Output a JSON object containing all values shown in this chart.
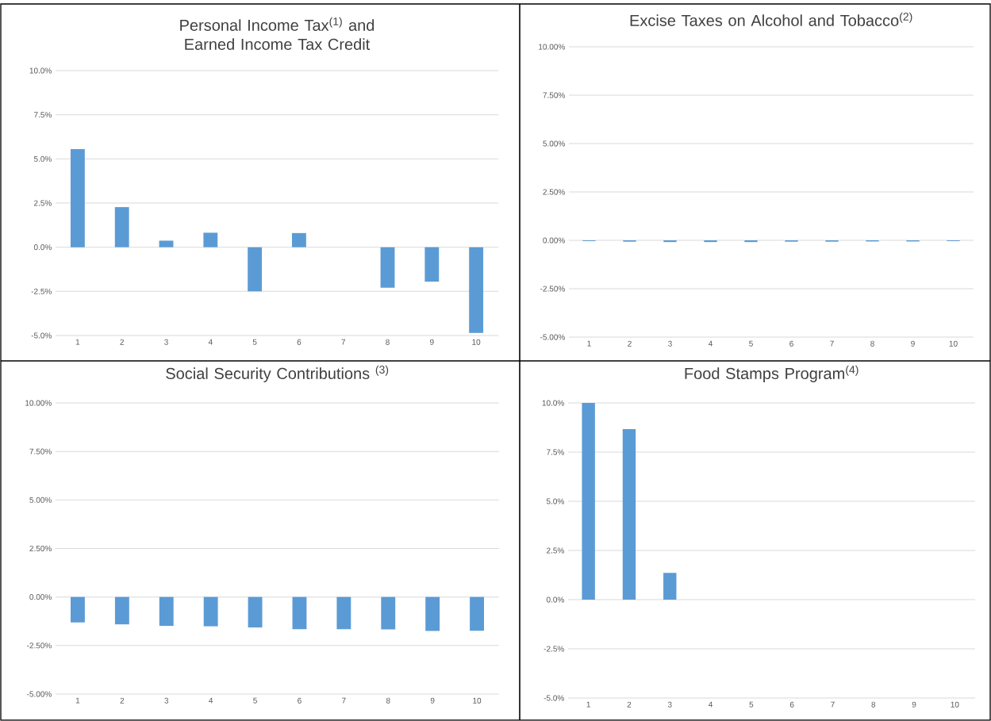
{
  "chart_data": [
    {
      "type": "bar",
      "title": "Personal Income Tax$^{(1)}$ and Earned Income Tax Credit",
      "categories": [
        "1",
        "2",
        "3",
        "4",
        "5",
        "6",
        "7",
        "8",
        "9",
        "10"
      ],
      "values": [
        5.55,
        2.27,
        0.37,
        0.82,
        -2.5,
        0.8,
        0,
        -2.3,
        -1.95,
        -4.86
      ],
      "color": "#5b9bd5",
      "ylim": [
        -5,
        10
      ],
      "yticks": [
        {
          "value": -5,
          "label": "-5.0%"
        },
        {
          "value": -2.5,
          "label": "-2.5%"
        },
        {
          "value": 0,
          "label": "0.0%"
        },
        {
          "value": 2.5,
          "label": "2.5%"
        },
        {
          "value": 5,
          "label": "5.0%"
        },
        {
          "value": 7.5,
          "label": "7.5%"
        },
        {
          "value": 10,
          "label": "10.0%"
        }
      ],
      "grid": "y"
    },
    {
      "type": "bar",
      "title": "Excise Taxes on Alcohol and Tobacco$^{(2)}$",
      "categories": [
        "1",
        "2",
        "3",
        "4",
        "5",
        "6",
        "7",
        "8",
        "9",
        "10"
      ],
      "values": [
        -0.04,
        -0.07,
        -0.09,
        -0.09,
        -0.09,
        -0.07,
        -0.07,
        -0.06,
        -0.06,
        -0.04
      ],
      "color": "#5b9bd5",
      "ylim": [
        -5,
        10
      ],
      "yticks": [
        {
          "value": -5,
          "label": "-5.00%"
        },
        {
          "value": -2.5,
          "label": "-2.50%"
        },
        {
          "value": 0,
          "label": "0.00%"
        },
        {
          "value": 2.5,
          "label": "2.50%"
        },
        {
          "value": 5,
          "label": "5.00%"
        },
        {
          "value": 7.5,
          "label": "7.50%"
        },
        {
          "value": 10,
          "label": "10.00%"
        }
      ],
      "grid": "y"
    },
    {
      "type": "bar",
      "title": "Social Security Contributions $^{(3)}$",
      "categories": [
        "1",
        "2",
        "3",
        "4",
        "5",
        "6",
        "7",
        "8",
        "9",
        "10"
      ],
      "values": [
        -1.31,
        -1.41,
        -1.49,
        -1.51,
        -1.57,
        -1.66,
        -1.66,
        -1.67,
        -1.75,
        -1.74
      ],
      "color": "#5b9bd5",
      "ylim": [
        -5,
        10
      ],
      "yticks": [
        {
          "value": -5,
          "label": "-5.00%"
        },
        {
          "value": -2.5,
          "label": "-2.50%"
        },
        {
          "value": 0,
          "label": "0.00%"
        },
        {
          "value": 2.5,
          "label": "2.50%"
        },
        {
          "value": 5,
          "label": "5.00%"
        },
        {
          "value": 7.5,
          "label": "7.50%"
        },
        {
          "value": 10,
          "label": "10.00%"
        }
      ],
      "grid": "y"
    },
    {
      "type": "bar",
      "title": "Food Stamps Program$^{(4)}$",
      "categories": [
        "1",
        "2",
        "3",
        "4",
        "5",
        "6",
        "7",
        "8",
        "9",
        "10"
      ],
      "values": [
        10,
        8.67,
        1.36,
        0,
        0,
        0,
        0,
        0,
        0,
        0
      ],
      "color": "#5b9bd5",
      "ylim": [
        -5,
        10
      ],
      "yticks": [
        {
          "value": -5,
          "label": "-5.0%"
        },
        {
          "value": -2.5,
          "label": "-2.5%"
        },
        {
          "value": 0,
          "label": "0.0%"
        },
        {
          "value": 2.5,
          "label": "2.5%"
        },
        {
          "value": 5,
          "label": "5.0%"
        },
        {
          "value": 7.5,
          "label": "7.5%"
        },
        {
          "value": 10,
          "label": "10.0%"
        }
      ],
      "grid": "y"
    }
  ]
}
